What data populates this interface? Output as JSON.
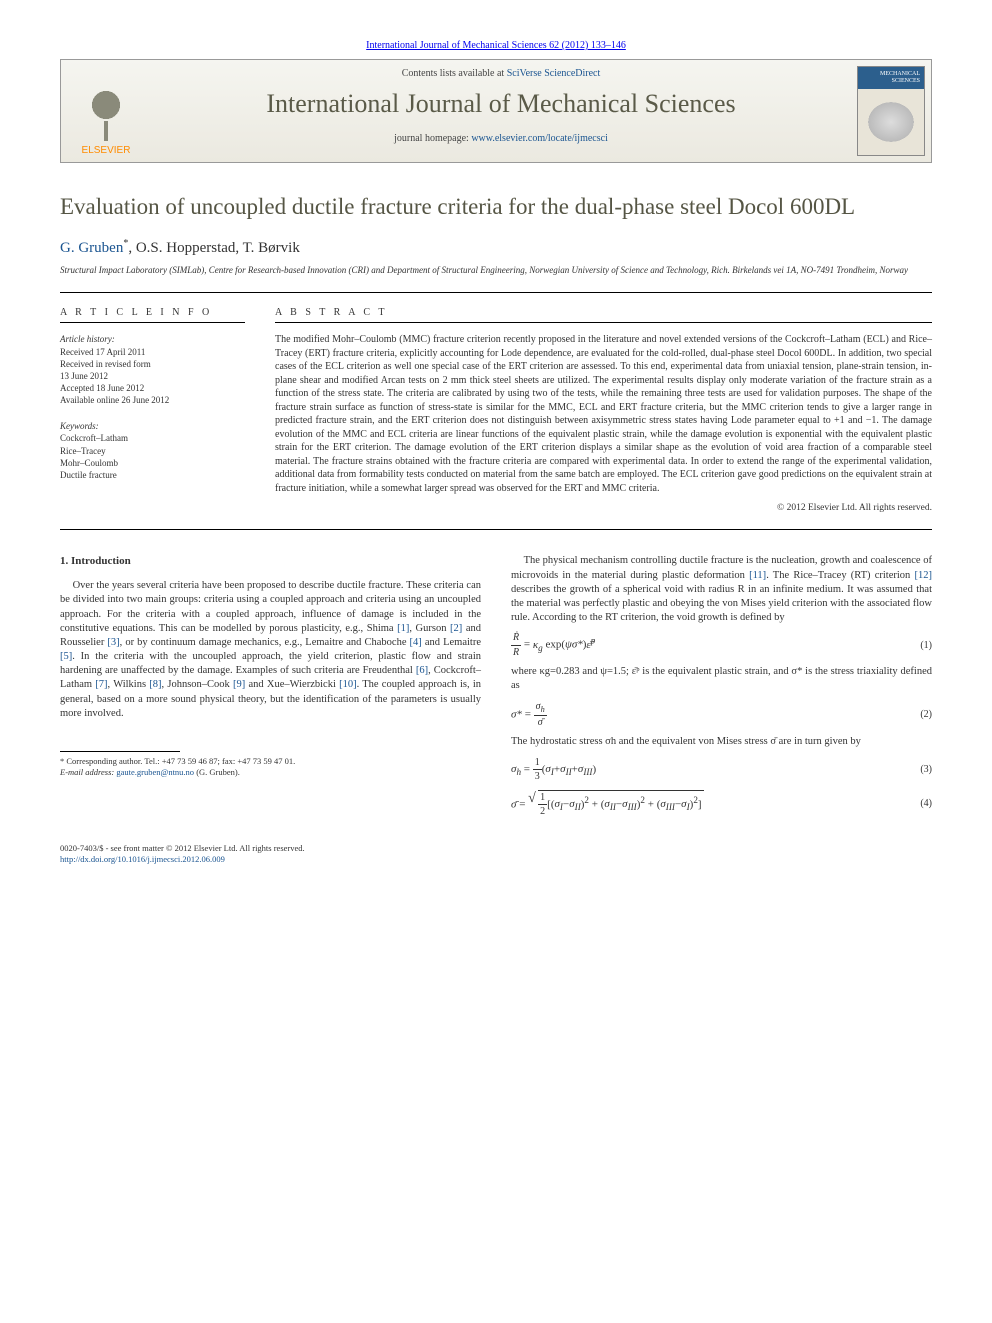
{
  "header": {
    "citation": "International Journal of Mechanical Sciences 62 (2012) 133–146",
    "contents_prefix": "Contents lists available at ",
    "contents_link": "SciVerse ScienceDirect",
    "journal_title": "International Journal of Mechanical Sciences",
    "homepage_prefix": "journal homepage: ",
    "homepage_url": "www.elsevier.com/locate/ijmecsci",
    "publisher": "ELSEVIER",
    "cover_label": "MECHANICAL SCIENCES"
  },
  "article": {
    "title": "Evaluation of uncoupled ductile fracture criteria for the dual-phase steel Docol 600DL",
    "authors_html": "G. Gruben",
    "authors_rest": ", O.S. Hopperstad, T. Børvik",
    "corr_mark": "*",
    "affiliation": "Structural Impact Laboratory (SIMLab), Centre for Research-based Innovation (CRI) and Department of Structural Engineering, Norwegian University of Science and Technology, Rich. Birkelands vei 1A, NO-7491 Trondheim, Norway"
  },
  "info": {
    "label": "A R T I C L E  I N F O",
    "history_label": "Article history:",
    "history": [
      "Received 17 April 2011",
      "Received in revised form",
      "13 June 2012",
      "Accepted 18 June 2012",
      "Available online 26 June 2012"
    ],
    "keywords_label": "Keywords:",
    "keywords": [
      "Cockcroft–Latham",
      "Rice–Tracey",
      "Mohr–Coulomb",
      "Ductile fracture"
    ]
  },
  "abstract": {
    "label": "A B S T R A C T",
    "text": "The modified Mohr–Coulomb (MMC) fracture criterion recently proposed in the literature and novel extended versions of the Cockcroft–Latham (ECL) and Rice–Tracey (ERT) fracture criteria, explicitly accounting for Lode dependence, are evaluated for the cold-rolled, dual-phase steel Docol 600DL. In addition, two special cases of the ECL criterion as well one special case of the ERT criterion are assessed. To this end, experimental data from uniaxial tension, plane-strain tension, in-plane shear and modified Arcan tests on 2 mm thick steel sheets are utilized. The experimental results display only moderate variation of the fracture strain as a function of the stress state. The criteria are calibrated by using two of the tests, while the remaining three tests are used for validation purposes. The shape of the fracture strain surface as function of stress-state is similar for the MMC, ECL and ERT fracture criteria, but the MMC criterion tends to give a larger range in predicted fracture strain, and the ERT criterion does not distinguish between axisymmetric stress states having Lode parameter equal to +1 and −1. The damage evolution of the MMC and ECL criteria are linear functions of the equivalent plastic strain, while the damage evolution is exponential with the equivalent plastic strain for the ERT criterion. The damage evolution of the ERT criterion displays a similar shape as the evolution of void area fraction of a comparable steel material. The fracture strains obtained with the fracture criteria are compared with experimental data. In order to extend the range of the experimental validation, additional data from formability tests conducted on material from the same batch are employed. The ECL criterion gave good predictions on the equivalent strain at fracture initiation, while a somewhat larger spread was observed for the ERT and MMC criteria.",
    "copyright": "© 2012 Elsevier Ltd. All rights reserved."
  },
  "body": {
    "section_number": "1.",
    "section_title": "Introduction",
    "col1_p1a": "Over the years several criteria have been proposed to describe ductile fracture. These criteria can be divided into two main groups: criteria using a coupled approach and criteria using an uncoupled approach. For the criteria with a coupled approach, influence of damage is included in the constitutive equations. This can be modelled by porous plasticity, e.g., Shima ",
    "ref1": "[1]",
    "col1_p1b": ", Gurson ",
    "ref2": "[2]",
    "col1_p1c": " and Rousselier ",
    "ref3": "[3]",
    "col1_p1d": ", or by continuum damage mechanics, e.g., Lemaitre and Chaboche ",
    "ref4": "[4]",
    "col1_p1e": " and Lemaitre ",
    "ref5": "[5]",
    "col1_p1f": ". In the criteria with the uncoupled approach, the yield criterion, plastic flow and strain hardening are unaffected by the damage. Examples of such criteria are Freudenthal ",
    "ref6": "[6]",
    "col1_p1g": ", Cockcroft–Latham ",
    "ref7": "[7]",
    "col1_p1h": ", Wilkins ",
    "ref8": "[8]",
    "col1_p1i": ", Johnson–Cook ",
    "ref9": "[9]",
    "col1_p1j": " and Xue–Wierzbicki ",
    "ref10": "[10]",
    "col1_p1k": ". The coupled approach is, in general, based on a more sound physical theory, but the identification of the parameters is usually more involved.",
    "col2_p1a": "The physical mechanism controlling ductile fracture is the nucleation, growth and coalescence of microvoids in the material during plastic deformation ",
    "ref11": "[11]",
    "col2_p1b": ". The Rice–Tracey (RT) criterion ",
    "ref12": "[12]",
    "col2_p1c": " describes the growth of a spherical void with radius R in an infinite medium. It was assumed that the material was perfectly plastic and obeying the von Mises yield criterion with the associated flow rule. According to the RT criterion, the void growth is defined by",
    "eq1_no": "(1)",
    "col2_p2a": "where κg=0.283 and ψ=1.5; ε̄ᵖ is the equivalent plastic strain, and σ* is the stress triaxiality defined as",
    "eq2_no": "(2)",
    "col2_p3": "The hydrostatic stress σh and the equivalent von Mises stress σ̄ are in turn given by",
    "eq3_no": "(3)",
    "eq4_no": "(4)"
  },
  "footnote": {
    "corr_label": "* Corresponding author. Tel.: +47 73 59 46 87; fax: +47 73 59 47 01.",
    "email_label": "E-mail address: ",
    "email": "gaute.gruben@ntnu.no",
    "email_who": " (G. Gruben)."
  },
  "footer": {
    "line1": "0020-7403/$ - see front matter © 2012 Elsevier Ltd. All rights reserved.",
    "doi_url": "http://dx.doi.org/10.1016/j.ijmecsci.2012.06.009"
  },
  "colors": {
    "link": "#1a5490",
    "accent": "#ff8c00",
    "title_muted": "#5a5a48"
  }
}
